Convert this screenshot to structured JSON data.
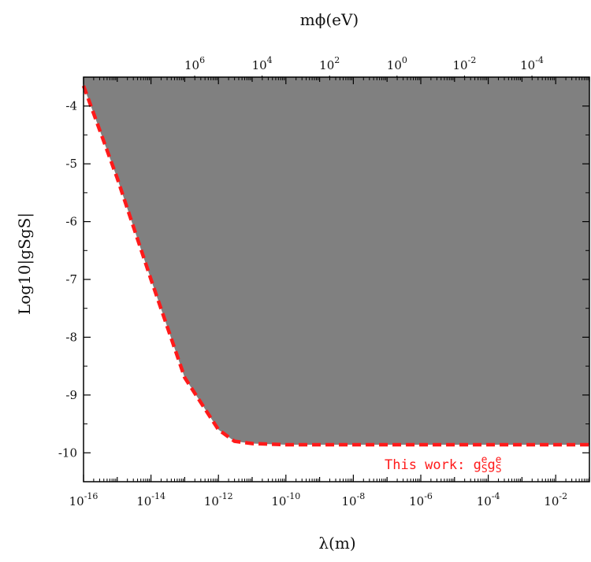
{
  "chart_data": {
    "type": "area",
    "xlabel": "λ(m)",
    "ylabel": "Log10|gSgS|",
    "top_axis_label": "mϕ(eV)",
    "x_scale": "log",
    "x_range": [
      1e-16,
      0.1
    ],
    "ylim": [
      -10.5,
      -3.5
    ],
    "x_ticks": [
      {
        "value": 1e-16,
        "base": "10",
        "exp": "-16"
      },
      {
        "value": 1e-14,
        "base": "10",
        "exp": "-14"
      },
      {
        "value": 1e-12,
        "base": "10",
        "exp": "-12"
      },
      {
        "value": 1e-10,
        "base": "10",
        "exp": "-10"
      },
      {
        "value": 1e-08,
        "base": "10",
        "exp": "-8"
      },
      {
        "value": 1e-06,
        "base": "10",
        "exp": "-6"
      },
      {
        "value": 0.0001,
        "base": "10",
        "exp": "-4"
      },
      {
        "value": 0.01,
        "base": "10",
        "exp": "-2"
      }
    ],
    "top_ticks": [
      {
        "ev": 1000000.0,
        "base": "10",
        "exp": "6"
      },
      {
        "ev": 10000.0,
        "base": "10",
        "exp": "4"
      },
      {
        "ev": 100.0,
        "base": "10",
        "exp": "2"
      },
      {
        "ev": 1.0,
        "base": "10",
        "exp": "0"
      },
      {
        "ev": 0.01,
        "base": "10",
        "exp": "-2"
      },
      {
        "ev": 0.0001,
        "base": "10",
        "exp": "-4"
      }
    ],
    "y_ticks": [
      "-4",
      "-5",
      "-6",
      "-7",
      "-8",
      "-9",
      "-10"
    ],
    "region": {
      "name": "excluded region",
      "color": "#808080"
    },
    "series": [
      {
        "name": "This work: g_S^e g_S^e",
        "color": "#ff1a1a",
        "style": "dashed",
        "x": [
          1e-16,
          1e-15,
          1e-14,
          1e-13,
          1e-12,
          3e-12,
          1e-11,
          1e-10,
          1e-08,
          1e-06,
          0.0001,
          0.01,
          0.1
        ],
        "y": [
          -3.65,
          -5.25,
          -7.0,
          -8.7,
          -9.6,
          -9.8,
          -9.84,
          -9.86,
          -9.86,
          -9.86,
          -9.86,
          -9.86,
          -9.86
        ]
      }
    ],
    "legend": {
      "text": "This work: g",
      "sup1": "e",
      "sub1": "S",
      "mid": "g",
      "sup2": "e",
      "sub2": "S",
      "placement": "bottom-right"
    }
  }
}
